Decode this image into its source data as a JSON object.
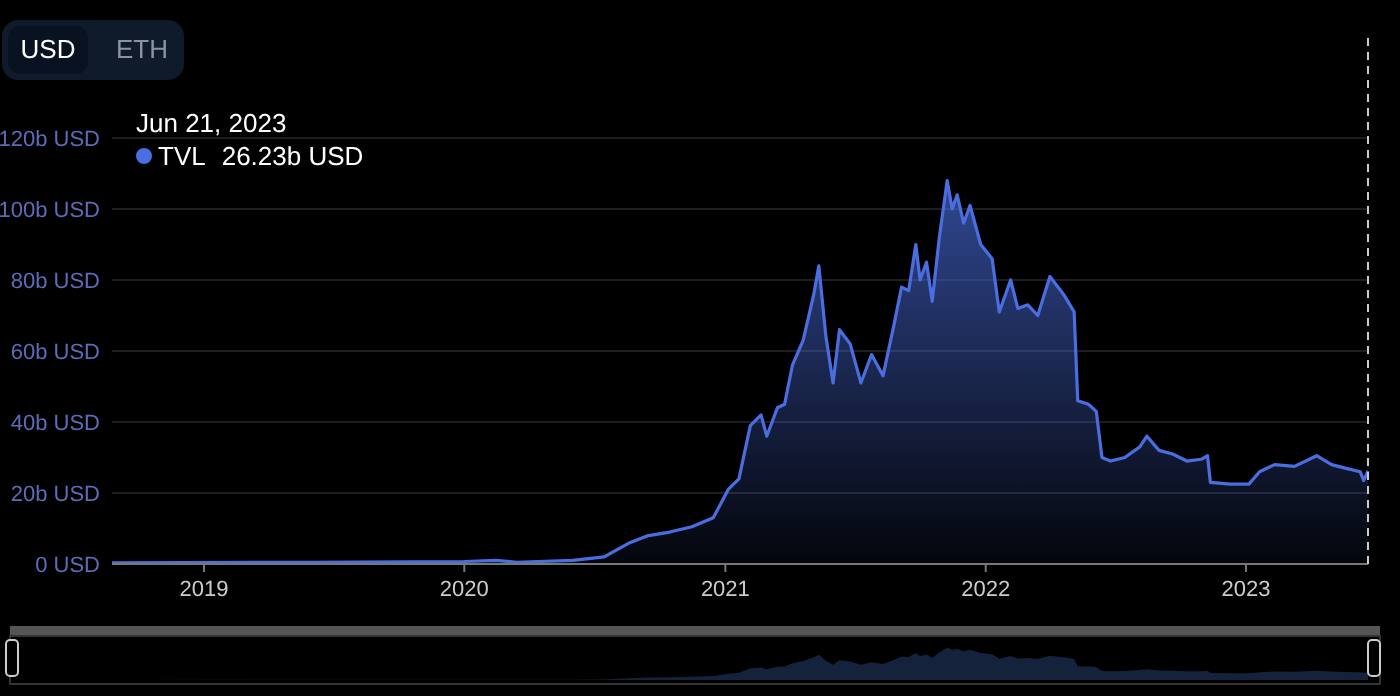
{
  "chart_data": {
    "type": "area",
    "annotations": [
      "USD",
      "ETH",
      "Jun 21, 2023",
      "26.23b USD"
    ],
    "x": [
      "2018-08-25",
      "2019-06-01",
      "2020-01-01",
      "2020-02-15",
      "2020-03-15",
      "2020-06-01",
      "2020-07-15",
      "2020-08-20",
      "2020-09-15",
      "2020-10-15",
      "2020-11-15",
      "2020-12-15",
      "2021-01-05",
      "2021-01-20",
      "2021-02-05",
      "2021-02-20",
      "2021-02-28",
      "2021-03-15",
      "2021-03-25",
      "2021-04-05",
      "2021-04-20",
      "2021-05-05",
      "2021-05-12",
      "2021-05-22",
      "2021-06-01",
      "2021-06-10",
      "2021-06-25",
      "2021-07-10",
      "2021-07-25",
      "2021-08-10",
      "2021-08-25",
      "2021-09-05",
      "2021-09-15",
      "2021-09-25",
      "2021-10-01",
      "2021-10-10",
      "2021-10-18",
      "2021-10-28",
      "2021-11-08",
      "2021-11-15",
      "2021-11-22",
      "2021-12-01",
      "2021-12-10",
      "2021-12-25",
      "2022-01-10",
      "2022-01-20",
      "2022-02-05",
      "2022-02-15",
      "2022-03-01",
      "2022-03-15",
      "2022-04-01",
      "2022-04-20",
      "2022-05-05",
      "2022-05-10",
      "2022-05-25",
      "2022-06-05",
      "2022-06-13",
      "2022-06-25",
      "2022-07-15",
      "2022-08-05",
      "2022-08-15",
      "2022-09-01",
      "2022-09-20",
      "2022-10-10",
      "2022-10-30",
      "2022-11-08",
      "2022-11-12",
      "2022-12-10",
      "2023-01-05",
      "2023-01-20",
      "2023-02-10",
      "2023-03-10",
      "2023-04-10",
      "2023-05-01",
      "2023-05-20",
      "2023-06-10",
      "2023-06-15",
      "2023-06-21"
    ],
    "series": [
      {
        "name": "TVL",
        "color": "#4a6ee0",
        "values": [
          0.3,
          0.5,
          0.7,
          1,
          0.5,
          1,
          2,
          6,
          8,
          9,
          10.5,
          13,
          21,
          24,
          39,
          42,
          36,
          44,
          45,
          56,
          63,
          76,
          84,
          64,
          51,
          66,
          62,
          51,
          59,
          53,
          67,
          78,
          77,
          90,
          80,
          85,
          74,
          92,
          108,
          100,
          104,
          96,
          101,
          90,
          86,
          71,
          80,
          72,
          73,
          70,
          81,
          76,
          71,
          46,
          45,
          43,
          30,
          29,
          30,
          33,
          36,
          32,
          31,
          29,
          29.5,
          30.5,
          23,
          22.5,
          22.5,
          26,
          28,
          27.5,
          30.5,
          28,
          27,
          26,
          23.5,
          26.23
        ]
      }
    ],
    "xlim": [
      "2018-08-25",
      "2023-06-21"
    ],
    "xticks": [
      {
        "value": "2019-01-01",
        "label": "2019"
      },
      {
        "value": "2020-01-01",
        "label": "2020"
      },
      {
        "value": "2021-01-01",
        "label": "2021"
      },
      {
        "value": "2022-01-01",
        "label": "2022"
      },
      {
        "value": "2023-01-01",
        "label": "2023"
      }
    ],
    "ylim": [
      0,
      120
    ],
    "yticks": [
      {
        "value": 0,
        "label": "0 USD"
      },
      {
        "value": 20,
        "label": "20b USD"
      },
      {
        "value": 40,
        "label": "40b USD"
      },
      {
        "value": 60,
        "label": "60b USD"
      },
      {
        "value": 80,
        "label": "80b USD"
      },
      {
        "value": 100,
        "label": "100b USD"
      },
      {
        "value": 120,
        "label": "120b USD"
      }
    ],
    "grid": "y",
    "legend": "top left",
    "ref_lines": [
      {
        "axis": "x",
        "value": "2023-06-21",
        "line_style": "dashed",
        "color": "#cccccc"
      }
    ]
  }
}
